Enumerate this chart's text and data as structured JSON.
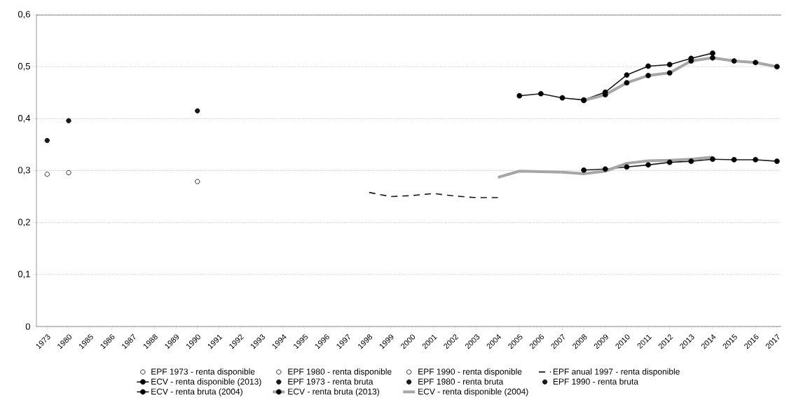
{
  "chart_data": {
    "type": "line",
    "categories": [
      "1973",
      "1980",
      "1985",
      "1986",
      "1987",
      "1988",
      "1989",
      "1990",
      "1991",
      "1992",
      "1993",
      "1994",
      "1995",
      "1996",
      "1997",
      "1998",
      "1999",
      "2000",
      "2001",
      "2002",
      "2003",
      "2004",
      "2005",
      "2006",
      "2007",
      "2008",
      "2009",
      "2010",
      "2011",
      "2012",
      "2013",
      "2014",
      "2015",
      "2016",
      "2017"
    ],
    "ylim": [
      0,
      0.6
    ],
    "yticks": [
      {
        "value": 0,
        "label": "0"
      },
      {
        "value": 0.1,
        "label": "0,1"
      },
      {
        "value": 0.2,
        "label": "0,2"
      },
      {
        "value": 0.3,
        "label": "0,3"
      },
      {
        "value": 0.4,
        "label": "0,4"
      },
      {
        "value": 0.5,
        "label": "0,5"
      },
      {
        "value": 0.6,
        "label": "0,6"
      }
    ],
    "grid": "y",
    "legend": "bottom",
    "series": [
      {
        "name": "EPF 1973 - renta disponible",
        "type": "scatter",
        "color": "#ffffff",
        "marker": "circle",
        "values": [
          0.293,
          null,
          null,
          null,
          null,
          null,
          null,
          null,
          null,
          null,
          null,
          null,
          null,
          null,
          null,
          null,
          null,
          null,
          null,
          null,
          null,
          null,
          null,
          null,
          null,
          null,
          null,
          null,
          null,
          null,
          null,
          null,
          null,
          null,
          null
        ]
      },
      {
        "name": "EPF 1980 - renta disponible",
        "type": "scatter",
        "color": "#ffffff",
        "marker": "circle",
        "values": [
          null,
          0.296,
          null,
          null,
          null,
          null,
          null,
          null,
          null,
          null,
          null,
          null,
          null,
          null,
          null,
          null,
          null,
          null,
          null,
          null,
          null,
          null,
          null,
          null,
          null,
          null,
          null,
          null,
          null,
          null,
          null,
          null,
          null,
          null,
          null
        ]
      },
      {
        "name": "EPF 1990 - renta disponible",
        "type": "scatter",
        "color": "#ffffff",
        "marker": "circle",
        "values": [
          null,
          null,
          null,
          null,
          null,
          null,
          null,
          0.279,
          null,
          null,
          null,
          null,
          null,
          null,
          null,
          null,
          null,
          null,
          null,
          null,
          null,
          null,
          null,
          null,
          null,
          null,
          null,
          null,
          null,
          null,
          null,
          null,
          null,
          null,
          null
        ]
      },
      {
        "name": "EPF anual 1997 - renta disponible",
        "color": "#1a1a1a",
        "line_style": "dashed",
        "values": [
          null,
          null,
          null,
          null,
          null,
          null,
          null,
          null,
          null,
          null,
          null,
          null,
          null,
          null,
          null,
          0.258,
          0.25,
          0.252,
          0.256,
          0.251,
          0.248,
          0.248,
          null,
          null,
          null,
          null,
          null,
          null,
          null,
          null,
          null,
          null,
          null,
          null,
          null
        ]
      },
      {
        "name": "ECV - renta disponible (2013)",
        "color": "#1a1a1a",
        "marker": "circle",
        "values": [
          null,
          null,
          null,
          null,
          null,
          null,
          null,
          null,
          null,
          null,
          null,
          null,
          null,
          null,
          null,
          null,
          null,
          null,
          null,
          null,
          null,
          null,
          null,
          null,
          null,
          0.301,
          0.303,
          0.307,
          0.311,
          0.316,
          0.318,
          0.322,
          0.321,
          0.321,
          0.318
        ]
      },
      {
        "name": "EPF 1973 - renta bruta",
        "type": "scatter",
        "color": "#1a1a1a",
        "marker": "circle",
        "values": [
          0.358,
          null,
          null,
          null,
          null,
          null,
          null,
          null,
          null,
          null,
          null,
          null,
          null,
          null,
          null,
          null,
          null,
          null,
          null,
          null,
          null,
          null,
          null,
          null,
          null,
          null,
          null,
          null,
          null,
          null,
          null,
          null,
          null,
          null,
          null
        ]
      },
      {
        "name": "EPF 1980 - renta bruta",
        "type": "scatter",
        "color": "#1a1a1a",
        "marker": "circle",
        "values": [
          null,
          0.396,
          null,
          null,
          null,
          null,
          null,
          null,
          null,
          null,
          null,
          null,
          null,
          null,
          null,
          null,
          null,
          null,
          null,
          null,
          null,
          null,
          null,
          null,
          null,
          null,
          null,
          null,
          null,
          null,
          null,
          null,
          null,
          null,
          null
        ]
      },
      {
        "name": "EPF 1990 - renta bruta",
        "type": "scatter",
        "color": "#1a1a1a",
        "marker": "circle",
        "values": [
          null,
          null,
          null,
          null,
          null,
          null,
          null,
          0.415,
          null,
          null,
          null,
          null,
          null,
          null,
          null,
          null,
          null,
          null,
          null,
          null,
          null,
          null,
          null,
          null,
          null,
          null,
          null,
          null,
          null,
          null,
          null,
          null,
          null,
          null,
          null
        ]
      },
      {
        "name": "ECV - renta bruta (2004)",
        "color": "#1a1a1a",
        "marker": "circle",
        "values": [
          null,
          null,
          null,
          null,
          null,
          null,
          null,
          null,
          null,
          null,
          null,
          null,
          null,
          null,
          null,
          null,
          null,
          null,
          null,
          null,
          null,
          null,
          0.444,
          0.448,
          0.44,
          0.436,
          0.451,
          0.484,
          0.501,
          0.504,
          0.516,
          0.526,
          null,
          null,
          null
        ]
      },
      {
        "name": "ECV - renta bruta (2013)",
        "color": "#a6a6a6",
        "marker": "circle",
        "values": [
          null,
          null,
          null,
          null,
          null,
          null,
          null,
          null,
          null,
          null,
          null,
          null,
          null,
          null,
          null,
          null,
          null,
          null,
          null,
          null,
          null,
          null,
          null,
          null,
          null,
          0.435,
          0.446,
          0.469,
          0.483,
          0.488,
          0.511,
          0.517,
          0.511,
          0.508,
          0.5
        ]
      },
      {
        "name": "ECV - renta disponible (2004)",
        "color": "#a6a6a6",
        "values": [
          null,
          null,
          null,
          null,
          null,
          null,
          null,
          null,
          null,
          null,
          null,
          null,
          null,
          null,
          null,
          null,
          null,
          null,
          null,
          null,
          null,
          0.287,
          0.299,
          0.298,
          0.297,
          0.294,
          0.299,
          0.314,
          0.319,
          0.32,
          0.322,
          0.326,
          null,
          null,
          null
        ]
      }
    ]
  }
}
